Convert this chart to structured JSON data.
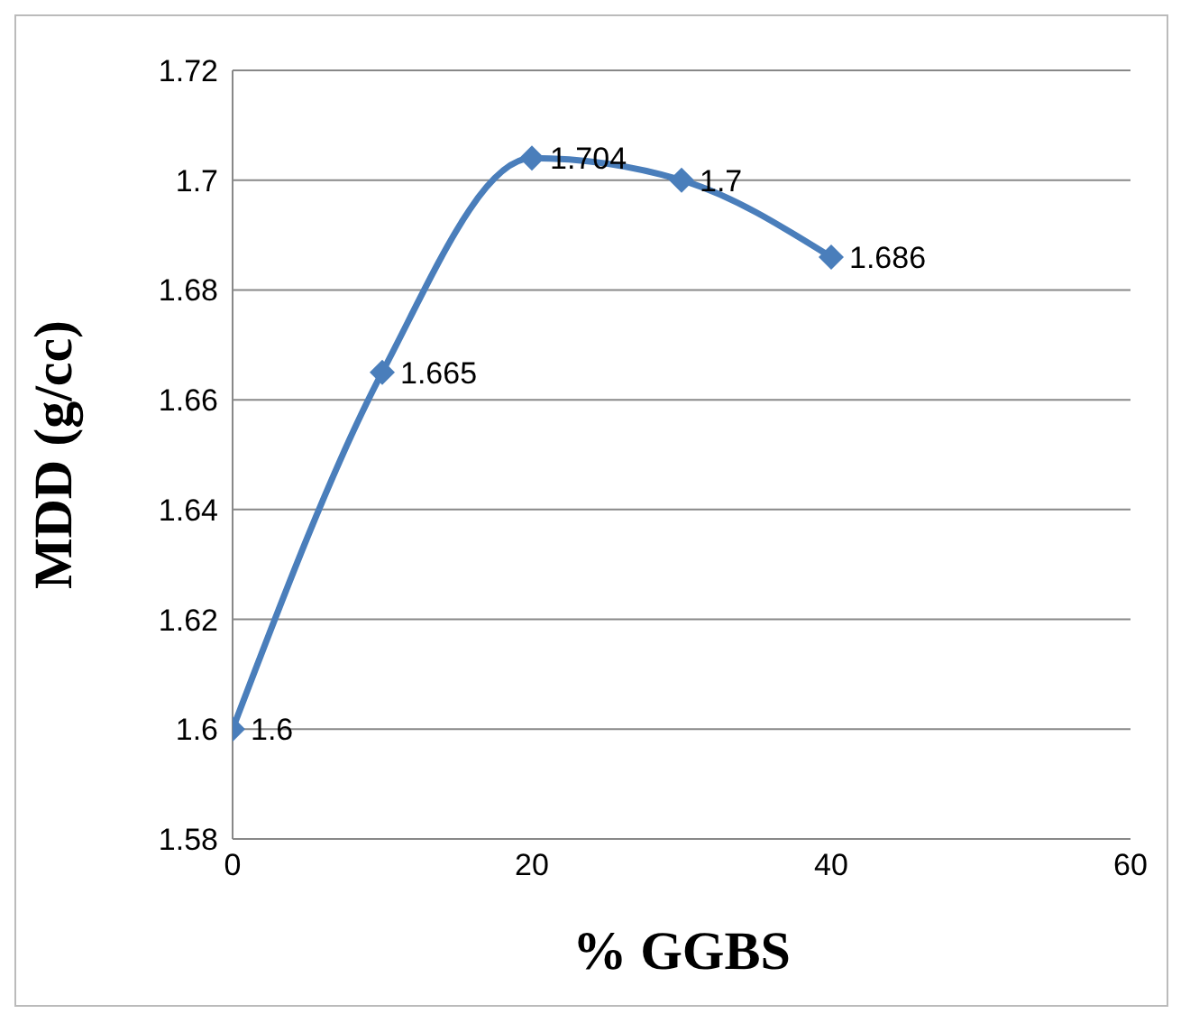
{
  "chart_data": {
    "type": "line",
    "xlabel": "% GGBS",
    "ylabel": "MDD (g/cc)",
    "x": [
      0,
      10,
      20,
      30,
      40
    ],
    "values": [
      1.6,
      1.665,
      1.704,
      1.7,
      1.686
    ],
    "color": "#4a7ebb",
    "xlim": [
      0,
      60
    ],
    "xticks": [
      0,
      20,
      40,
      60
    ],
    "ylim": [
      1.58,
      1.72
    ],
    "yticks": [
      1.58,
      1.6,
      1.62,
      1.64,
      1.66,
      1.68,
      1.7,
      1.72
    ],
    "grid": "y",
    "marker": "diamond",
    "line_style": "solid",
    "data_labels": true
  }
}
